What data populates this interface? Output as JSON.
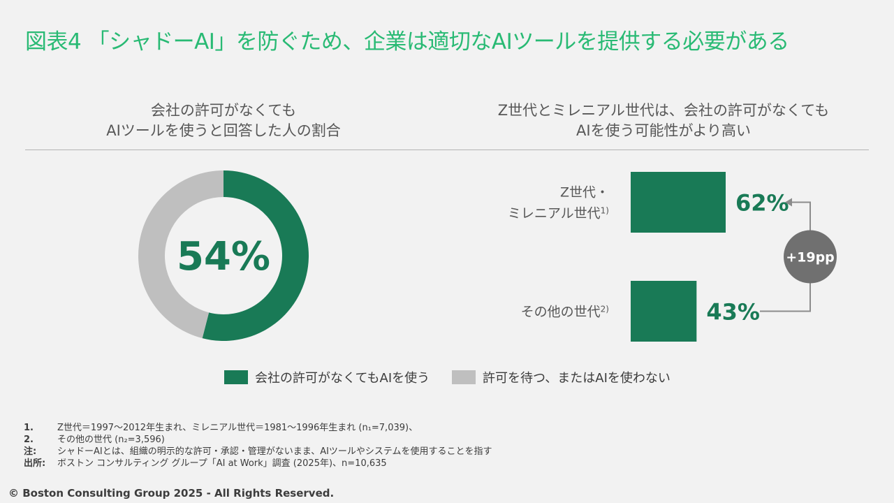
{
  "title": "図表4 「シャドーAI」を防ぐため、企業は適切なAIツールを提供する必要がある",
  "left_panel": {
    "heading_line1": "会社の許可がなくても",
    "heading_line2": "AIツールを使うと回答した人の割合",
    "center_label": "54%"
  },
  "right_panel": {
    "heading_line1": "Z世代とミレニアル世代は、会社の許可がなくても",
    "heading_line2": "AIを使う可能性がより高い",
    "diff_label": "+19pp"
  },
  "legend": {
    "used_label": "会社の許可がなくてもAIを使う",
    "not_used_label": "許可を待つ、またはAIを使わない"
  },
  "notes": [
    {
      "key": "1.",
      "text": "Z世代＝1997～2012年生まれ、ミレニアル世代＝1981～1996年生まれ (n₁=7,039)、"
    },
    {
      "key": "2.",
      "text": "その他の世代 (n₂=3,596)"
    },
    {
      "key": "注:",
      "text": "シャドーAIとは、組織の明示的な許可・承認・管理がないまま、AIツールやシステムを使用することを指す"
    },
    {
      "key": "出所:",
      "text": "ボストン コンサルティング グループ「AI at Work」調査 (2025年)、n=10,635"
    }
  ],
  "copyright": "© Boston Consulting Group 2025 - All Rights Reserved.",
  "colors": {
    "title": "#29ba74",
    "primary": "#197a56",
    "secondary": "#bfbfbf",
    "badge": "#707070"
  },
  "chart_data": [
    {
      "type": "pie",
      "categories": [
        "会社の許可がなくてもAIを使う",
        "許可を待つ、またはAIを使わない"
      ],
      "values": [
        54,
        46
      ],
      "center_label": "54%"
    },
    {
      "type": "bar",
      "categories": [
        "Z世代・ミレニアル世代1)",
        "その他の世代2)"
      ],
      "category_lines": [
        [
          "Z世代・",
          "ミレニアル世代"
        ],
        [
          "その他の世代"
        ]
      ],
      "footnote_marks": [
        "1)",
        "2)"
      ],
      "values": [
        62,
        43
      ],
      "value_labels": [
        "62%",
        "43%"
      ],
      "difference_label": "+19pp"
    }
  ]
}
